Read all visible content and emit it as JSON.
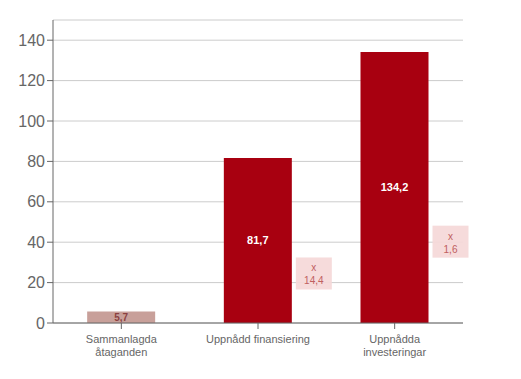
{
  "chart_data": {
    "type": "bar",
    "categories": [
      "Sammanlagda\nåtaganden",
      "Uppnådd finansiering",
      "Uppnådda\ninvesteringar"
    ],
    "values": [
      5.7,
      81.7,
      134.2
    ],
    "value_labels": [
      "5,7",
      "81,7",
      "134,2"
    ],
    "data_labels": true,
    "colors": [
      "#c8a09a",
      "#a80010",
      "#a80010"
    ],
    "annotations": [
      "x\n14,4",
      "x\n1,6"
    ],
    "ylim": [
      0,
      150
    ],
    "yticks": [
      0,
      20,
      40,
      60,
      80,
      100,
      120,
      140
    ],
    "grid": true
  }
}
